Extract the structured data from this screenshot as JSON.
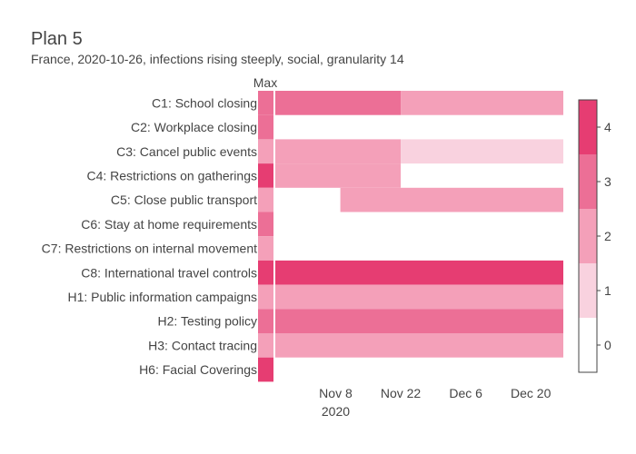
{
  "chart_data": {
    "type": "heatmap",
    "title": "Plan 5",
    "subtitle": "France, 2020-10-26, infections rising steeply, social, granularity 14",
    "max_column_label": "Max",
    "x_range": [
      "2020-10-26",
      "2020-12-27"
    ],
    "x_ticks": [
      {
        "date": "2020-11-08",
        "label": "Nov 8",
        "sublabel": "2020"
      },
      {
        "date": "2020-11-22",
        "label": "Nov 22",
        "sublabel": ""
      },
      {
        "date": "2020-12-06",
        "label": "Dec 6",
        "sublabel": ""
      },
      {
        "date": "2020-12-20",
        "label": "Dec 20",
        "sublabel": ""
      }
    ],
    "colorscale": {
      "min": 0,
      "max": 4,
      "ticks": [
        "0",
        "1",
        "2",
        "3",
        "4"
      ],
      "colors": [
        "#ffffff",
        "#f9d2df",
        "#f4a0b9",
        "#ec6f96",
        "#e63d72"
      ]
    },
    "rows": [
      {
        "label": "C1: School closing",
        "max": 3,
        "segments": [
          {
            "start": "2020-10-26",
            "end": "2020-11-22",
            "value": 3
          },
          {
            "start": "2020-11-22",
            "end": "2020-12-27",
            "value": 2
          }
        ]
      },
      {
        "label": "C2: Workplace closing",
        "max": 3,
        "segments": []
      },
      {
        "label": "C3: Cancel public events",
        "max": 2,
        "segments": [
          {
            "start": "2020-10-26",
            "end": "2020-11-22",
            "value": 2
          },
          {
            "start": "2020-11-22",
            "end": "2020-12-27",
            "value": 1
          }
        ]
      },
      {
        "label": "C4: Restrictions on gatherings",
        "max": 4,
        "segments": [
          {
            "start": "2020-10-26",
            "end": "2020-11-22",
            "value": 2
          }
        ]
      },
      {
        "label": "C5: Close public transport",
        "max": 2,
        "segments": [
          {
            "start": "2020-11-09",
            "end": "2020-12-27",
            "value": 2
          }
        ]
      },
      {
        "label": "C6: Stay at home requirements",
        "max": 3,
        "segments": []
      },
      {
        "label": "C7: Restrictions on internal movement",
        "max": 2,
        "segments": []
      },
      {
        "label": "C8: International travel controls",
        "max": 4,
        "segments": [
          {
            "start": "2020-10-26",
            "end": "2020-12-27",
            "value": 4
          }
        ]
      },
      {
        "label": "H1: Public information campaigns",
        "max": 2,
        "segments": [
          {
            "start": "2020-10-26",
            "end": "2020-12-27",
            "value": 2
          }
        ]
      },
      {
        "label": "H2: Testing policy",
        "max": 3,
        "segments": [
          {
            "start": "2020-10-26",
            "end": "2020-12-27",
            "value": 3
          }
        ]
      },
      {
        "label": "H3: Contact tracing",
        "max": 2,
        "segments": [
          {
            "start": "2020-10-26",
            "end": "2020-12-27",
            "value": 2
          }
        ]
      },
      {
        "label": "H6: Facial Coverings",
        "max": 4,
        "segments": []
      }
    ]
  }
}
